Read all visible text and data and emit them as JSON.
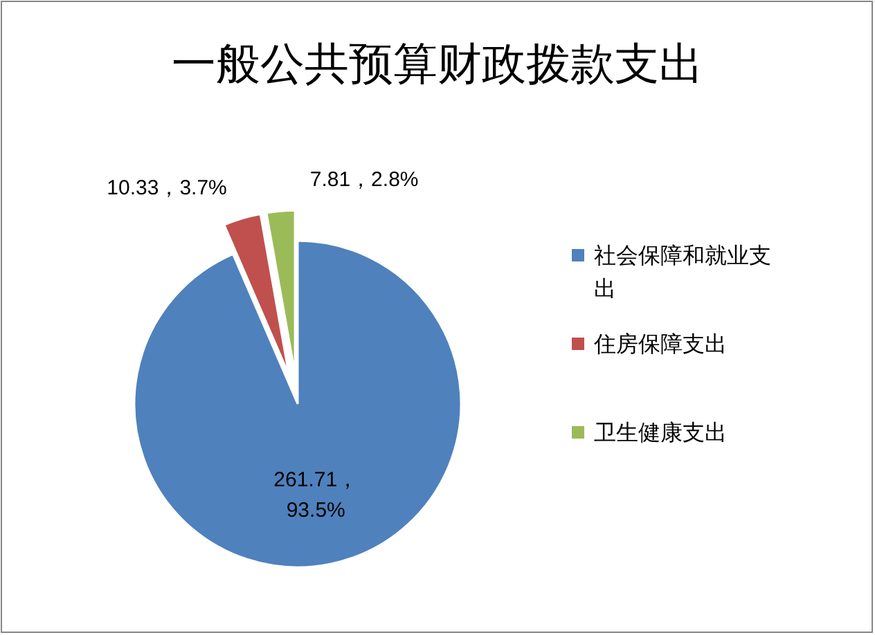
{
  "chart_data": {
    "type": "pie",
    "title": "一般公共预算财政拨款支出",
    "categories": [
      "社会保障和就业支出",
      "住房保障支出",
      "卫生健康支出"
    ],
    "values": [
      261.71,
      10.33,
      7.81
    ],
    "colors": [
      "#4f81bd",
      "#c0504d",
      "#9bbb59"
    ],
    "value_labels": [
      "261.71，93.5%",
      "10.33，3.7%",
      "7.81，2.8%"
    ],
    "legend": "right"
  }
}
